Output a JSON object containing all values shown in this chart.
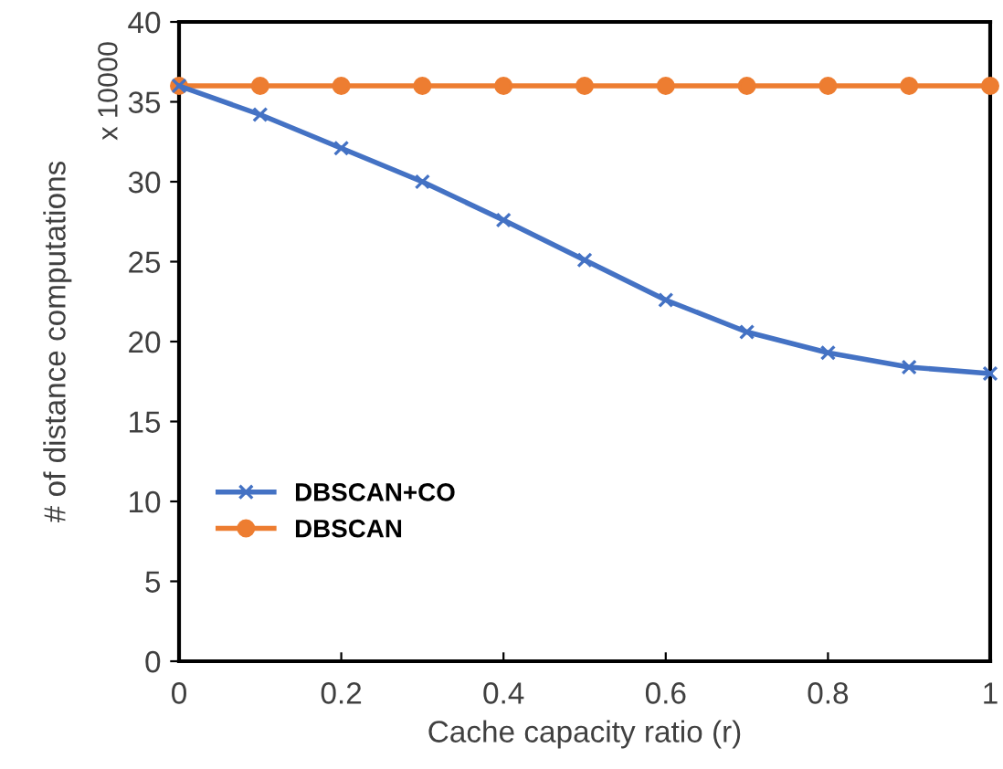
{
  "chart_data": {
    "type": "line",
    "xlabel": "Cache capacity ratio (r)",
    "ylabel": "# of distance computations",
    "annotations": [
      "x 10000"
    ],
    "x": [
      0,
      0.1,
      0.2,
      0.3,
      0.4,
      0.5,
      0.6,
      0.7,
      0.8,
      0.9,
      1
    ],
    "series": [
      {
        "name": "DBSCAN+CO",
        "color": "#4472c4",
        "marker": "cross",
        "values": [
          36,
          34.2,
          32.1,
          30.0,
          27.6,
          25.1,
          22.6,
          20.6,
          19.3,
          18.4,
          18.0
        ]
      },
      {
        "name": "DBSCAN",
        "color": "#ed7d31",
        "marker": "circle",
        "values": [
          36,
          36,
          36,
          36,
          36,
          36,
          36,
          36,
          36,
          36,
          36
        ]
      }
    ],
    "xlim": [
      0,
      1
    ],
    "xticks": [
      0,
      0.2,
      0.4,
      0.6,
      0.8,
      1
    ],
    "ylim": [
      0,
      40
    ],
    "yticks": [
      0,
      5,
      10,
      15,
      20,
      25,
      30,
      35,
      40
    ],
    "grid": false,
    "legend": "bottom left",
    "line_style": "solid"
  }
}
